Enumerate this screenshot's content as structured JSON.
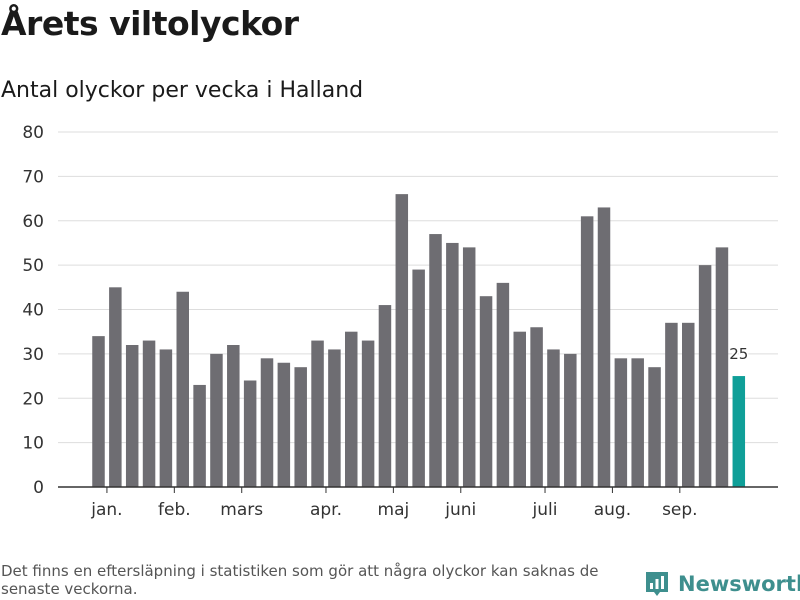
{
  "header": {
    "title": "Årets viltolyckor",
    "subtitle": "Antal olyckor per vecka i Halland"
  },
  "footer": {
    "note": "Det finns en eftersläpning i statistiken som gör att några olyckor kan saknas de senaste veckorna.",
    "brand": "Newsworthy"
  },
  "colors": {
    "bar": "#6e6d72",
    "highlight": "#0f9f98",
    "grid": "#dddddd",
    "axis": "#333333",
    "brand": "#3e8f8e"
  },
  "chart_data": {
    "type": "bar",
    "title": "Antal olyckor per vecka i Halland",
    "xlabel": "",
    "ylabel": "",
    "ylim": [
      0,
      80
    ],
    "y_ticks": [
      0,
      10,
      20,
      30,
      40,
      50,
      60,
      70,
      80
    ],
    "grid": true,
    "weeks": [
      1,
      2,
      3,
      4,
      5,
      6,
      7,
      8,
      9,
      10,
      11,
      12,
      13,
      14,
      15,
      16,
      17,
      18,
      19,
      20,
      21,
      22,
      23,
      24,
      25,
      26,
      27,
      28,
      29,
      30,
      31,
      32,
      33,
      34,
      35,
      36,
      37,
      38,
      39
    ],
    "values": [
      34,
      45,
      32,
      33,
      31,
      44,
      23,
      30,
      32,
      24,
      29,
      28,
      27,
      33,
      31,
      35,
      33,
      41,
      66,
      49,
      57,
      55,
      54,
      43,
      46,
      35,
      36,
      31,
      30,
      61,
      63,
      29,
      29,
      27,
      37,
      37,
      50,
      54,
      25
    ],
    "highlight_index": 38,
    "highlight_label": "25",
    "month_labels": [
      {
        "label": "jan.",
        "week": 1.5
      },
      {
        "label": "feb.",
        "week": 5.5
      },
      {
        "label": "mars",
        "week": 9.5
      },
      {
        "label": "apr.",
        "week": 14.5
      },
      {
        "label": "maj",
        "week": 18.5
      },
      {
        "label": "juni",
        "week": 22.5
      },
      {
        "label": "juli",
        "week": 27.5
      },
      {
        "label": "aug.",
        "week": 31.5
      },
      {
        "label": "sep.",
        "week": 35.5
      }
    ]
  }
}
